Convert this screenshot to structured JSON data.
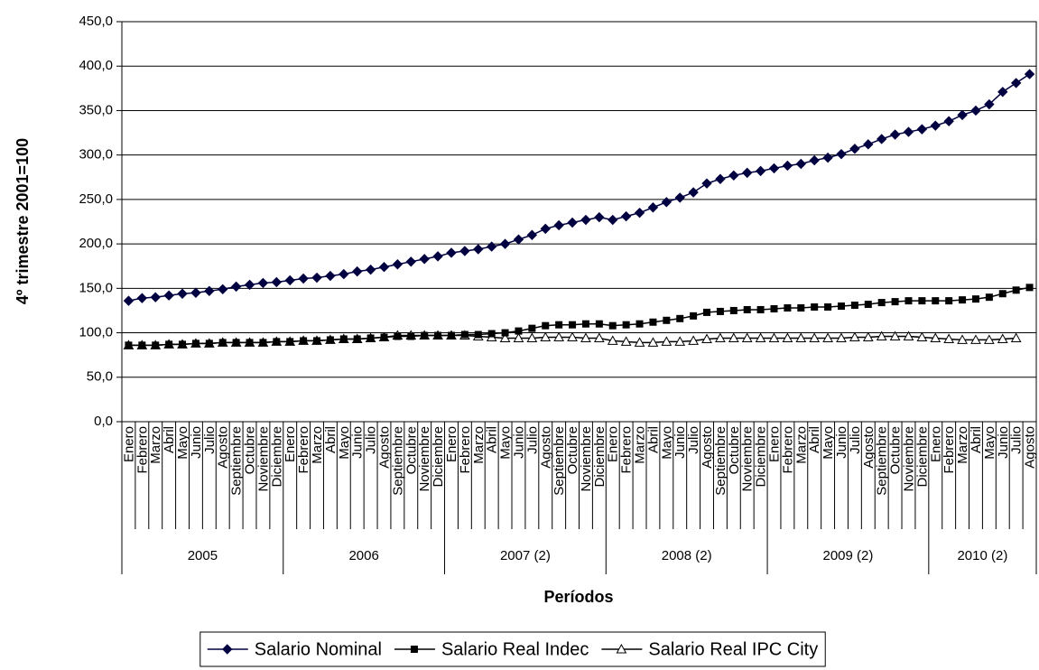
{
  "chart_data": {
    "type": "line",
    "y_label": "4º trimestre 2001=100",
    "x_label": "Períodos",
    "categories": [
      "Enero",
      "Febrero",
      "Marzo",
      "Abril",
      "Mayo",
      "Junio",
      "Julio",
      "Agosto",
      "Septiembre",
      "Octubre",
      "Noviembre",
      "Diciembre",
      "Enero",
      "Febrero",
      "Marzo",
      "Abril",
      "Mayo",
      "Junio",
      "Julio",
      "Agosto",
      "Septiembre",
      "Octubre",
      "Noviembre",
      "Diciembre",
      "Enero",
      "Febrero",
      "Marzo",
      "Abril",
      "Mayo",
      "Junio",
      "Julio",
      "Agosto",
      "Septiembre",
      "Octubre",
      "Noviembre",
      "Diciembre",
      "Enero",
      "Febrero",
      "Marzo",
      "Abril",
      "Mayo",
      "Junio",
      "Julio",
      "Agosto",
      "Septiembre",
      "Octubre",
      "Noviembre",
      "Diciembre",
      "Enero",
      "Febrero",
      "Marzo",
      "Abril",
      "Mayo",
      "Junio",
      "Julio",
      "Agosto",
      "Septiembre",
      "Octubre",
      "Noviembre",
      "Diciembre",
      "Enero",
      "Febrero",
      "Marzo",
      "Abril",
      "Mayo",
      "Junio",
      "Julio",
      "Agosto"
    ],
    "year_groups": [
      {
        "label": "2005",
        "months": 12
      },
      {
        "label": "2006",
        "months": 12
      },
      {
        "label": "2007 (2)",
        "months": 12
      },
      {
        "label": "2008 (2)",
        "months": 12
      },
      {
        "label": "2009 (2)",
        "months": 12
      },
      {
        "label": "2010 (2)",
        "months": 8
      }
    ],
    "series": [
      {
        "name": "Salario Nominal",
        "color": "#000040",
        "marker": "diamond",
        "values": [
          136,
          139,
          140,
          142,
          144,
          145,
          147,
          149,
          152,
          154,
          156,
          157,
          159,
          161,
          162,
          164,
          166,
          169,
          171,
          174,
          177,
          180,
          183,
          186,
          190,
          192,
          194,
          197,
          200,
          205,
          210,
          217,
          221,
          224,
          227,
          230,
          227,
          231,
          235,
          241,
          247,
          252,
          258,
          268,
          273,
          277,
          280,
          282,
          285,
          288,
          290,
          294,
          297,
          301,
          307,
          312,
          318,
          323,
          326,
          329,
          333,
          338,
          345,
          350,
          357,
          371,
          381,
          391
        ]
      },
      {
        "name": "Salario Real Indec",
        "color": "#000000",
        "marker": "square",
        "values": [
          86,
          86,
          86,
          87,
          87,
          88,
          88,
          89,
          89,
          89,
          89,
          90,
          90,
          91,
          91,
          92,
          93,
          93,
          94,
          95,
          96,
          96,
          97,
          97,
          97,
          98,
          98,
          99,
          100,
          102,
          105,
          108,
          109,
          109,
          110,
          110,
          108,
          109,
          110,
          112,
          114,
          116,
          119,
          123,
          124,
          125,
          126,
          126,
          127,
          128,
          128,
          129,
          129,
          130,
          131,
          132,
          134,
          135,
          136,
          136,
          136,
          136,
          137,
          138,
          140,
          144,
          148,
          151
        ]
      },
      {
        "name": "Salario Real IPC City",
        "color": "#000000",
        "marker": "triangle",
        "values": [
          86,
          86,
          86,
          87,
          87,
          88,
          88,
          89,
          89,
          89,
          89,
          90,
          90,
          91,
          91,
          92,
          93,
          93,
          94,
          95,
          97,
          97,
          97,
          97,
          97,
          97,
          96,
          95,
          94,
          94,
          94,
          95,
          95,
          95,
          94,
          94,
          91,
          90,
          89,
          89,
          90,
          90,
          91,
          93,
          94,
          94,
          94,
          94,
          94,
          94,
          94,
          94,
          94,
          94,
          95,
          95,
          96,
          96,
          96,
          95,
          94,
          93,
          92,
          92,
          92,
          93,
          94,
          null
        ]
      }
    ],
    "ylim": [
      0,
      450
    ],
    "yticks": [
      {
        "value": 0,
        "label": "0,0"
      },
      {
        "value": 50,
        "label": "50,0"
      },
      {
        "value": 100,
        "label": "100,0"
      },
      {
        "value": 150,
        "label": "150,0"
      },
      {
        "value": 200,
        "label": "200,0"
      },
      {
        "value": 250,
        "label": "250,0"
      },
      {
        "value": 300,
        "label": "300,0"
      },
      {
        "value": 350,
        "label": "350,0"
      },
      {
        "value": 400,
        "label": "400,0"
      },
      {
        "value": 450,
        "label": "450,0"
      }
    ],
    "grid": true
  }
}
